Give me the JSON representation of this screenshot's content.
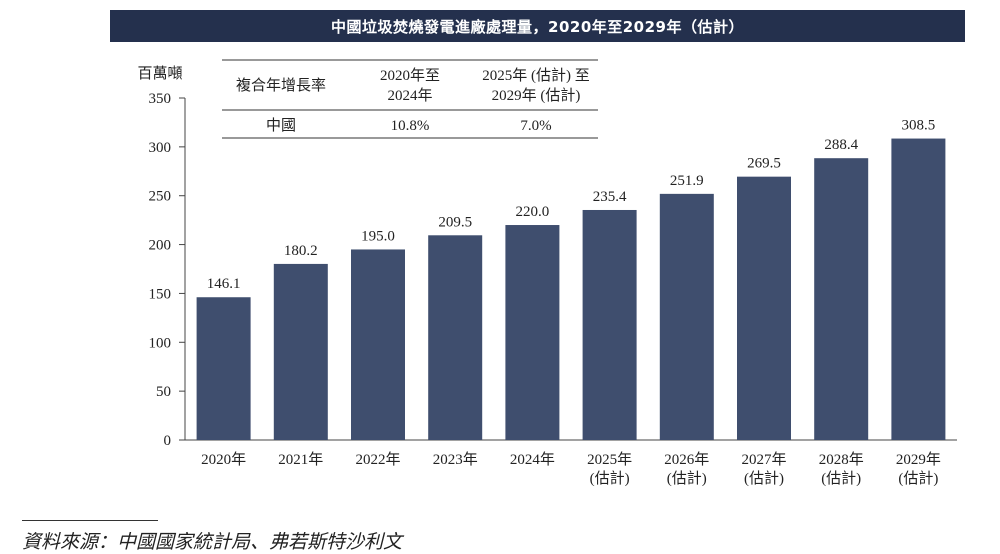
{
  "chart_data": {
    "type": "bar",
    "title": "中國垃圾焚燒發電進廠處理量，2020年至2029年（估計）",
    "ylabel": "百萬噸",
    "xlabel": "",
    "ylim": [
      0,
      350
    ],
    "yticks": [
      0,
      50,
      100,
      150,
      200,
      250,
      300,
      350
    ],
    "categories": [
      [
        "2020年"
      ],
      [
        "2021年"
      ],
      [
        "2022年"
      ],
      [
        "2023年"
      ],
      [
        "2024年"
      ],
      [
        "2025年",
        "(估計)"
      ],
      [
        "2026年",
        "(估計)"
      ],
      [
        "2027年",
        "(估計)"
      ],
      [
        "2028年",
        "(估計)"
      ],
      [
        "2029年",
        "(估計)"
      ]
    ],
    "values": [
      146.1,
      180.2,
      195.0,
      209.5,
      220.0,
      235.4,
      251.9,
      269.5,
      288.4,
      308.5
    ],
    "value_labels": [
      "146.1",
      "180.2",
      "195.0",
      "209.5",
      "220.0",
      "235.4",
      "251.9",
      "269.5",
      "288.4",
      "308.5"
    ],
    "bar_color": "#3f4e6e",
    "grid": false,
    "cagr_table": {
      "header": [
        "複合年增長率",
        "2020年至\n2024年",
        "2025年 (估計) 至\n2029年 (估計)"
      ],
      "rows": [
        [
          "中國",
          "10.8%",
          "7.0%"
        ]
      ]
    }
  },
  "source": "資料來源：中國國家統計局、弗若斯特沙利文"
}
